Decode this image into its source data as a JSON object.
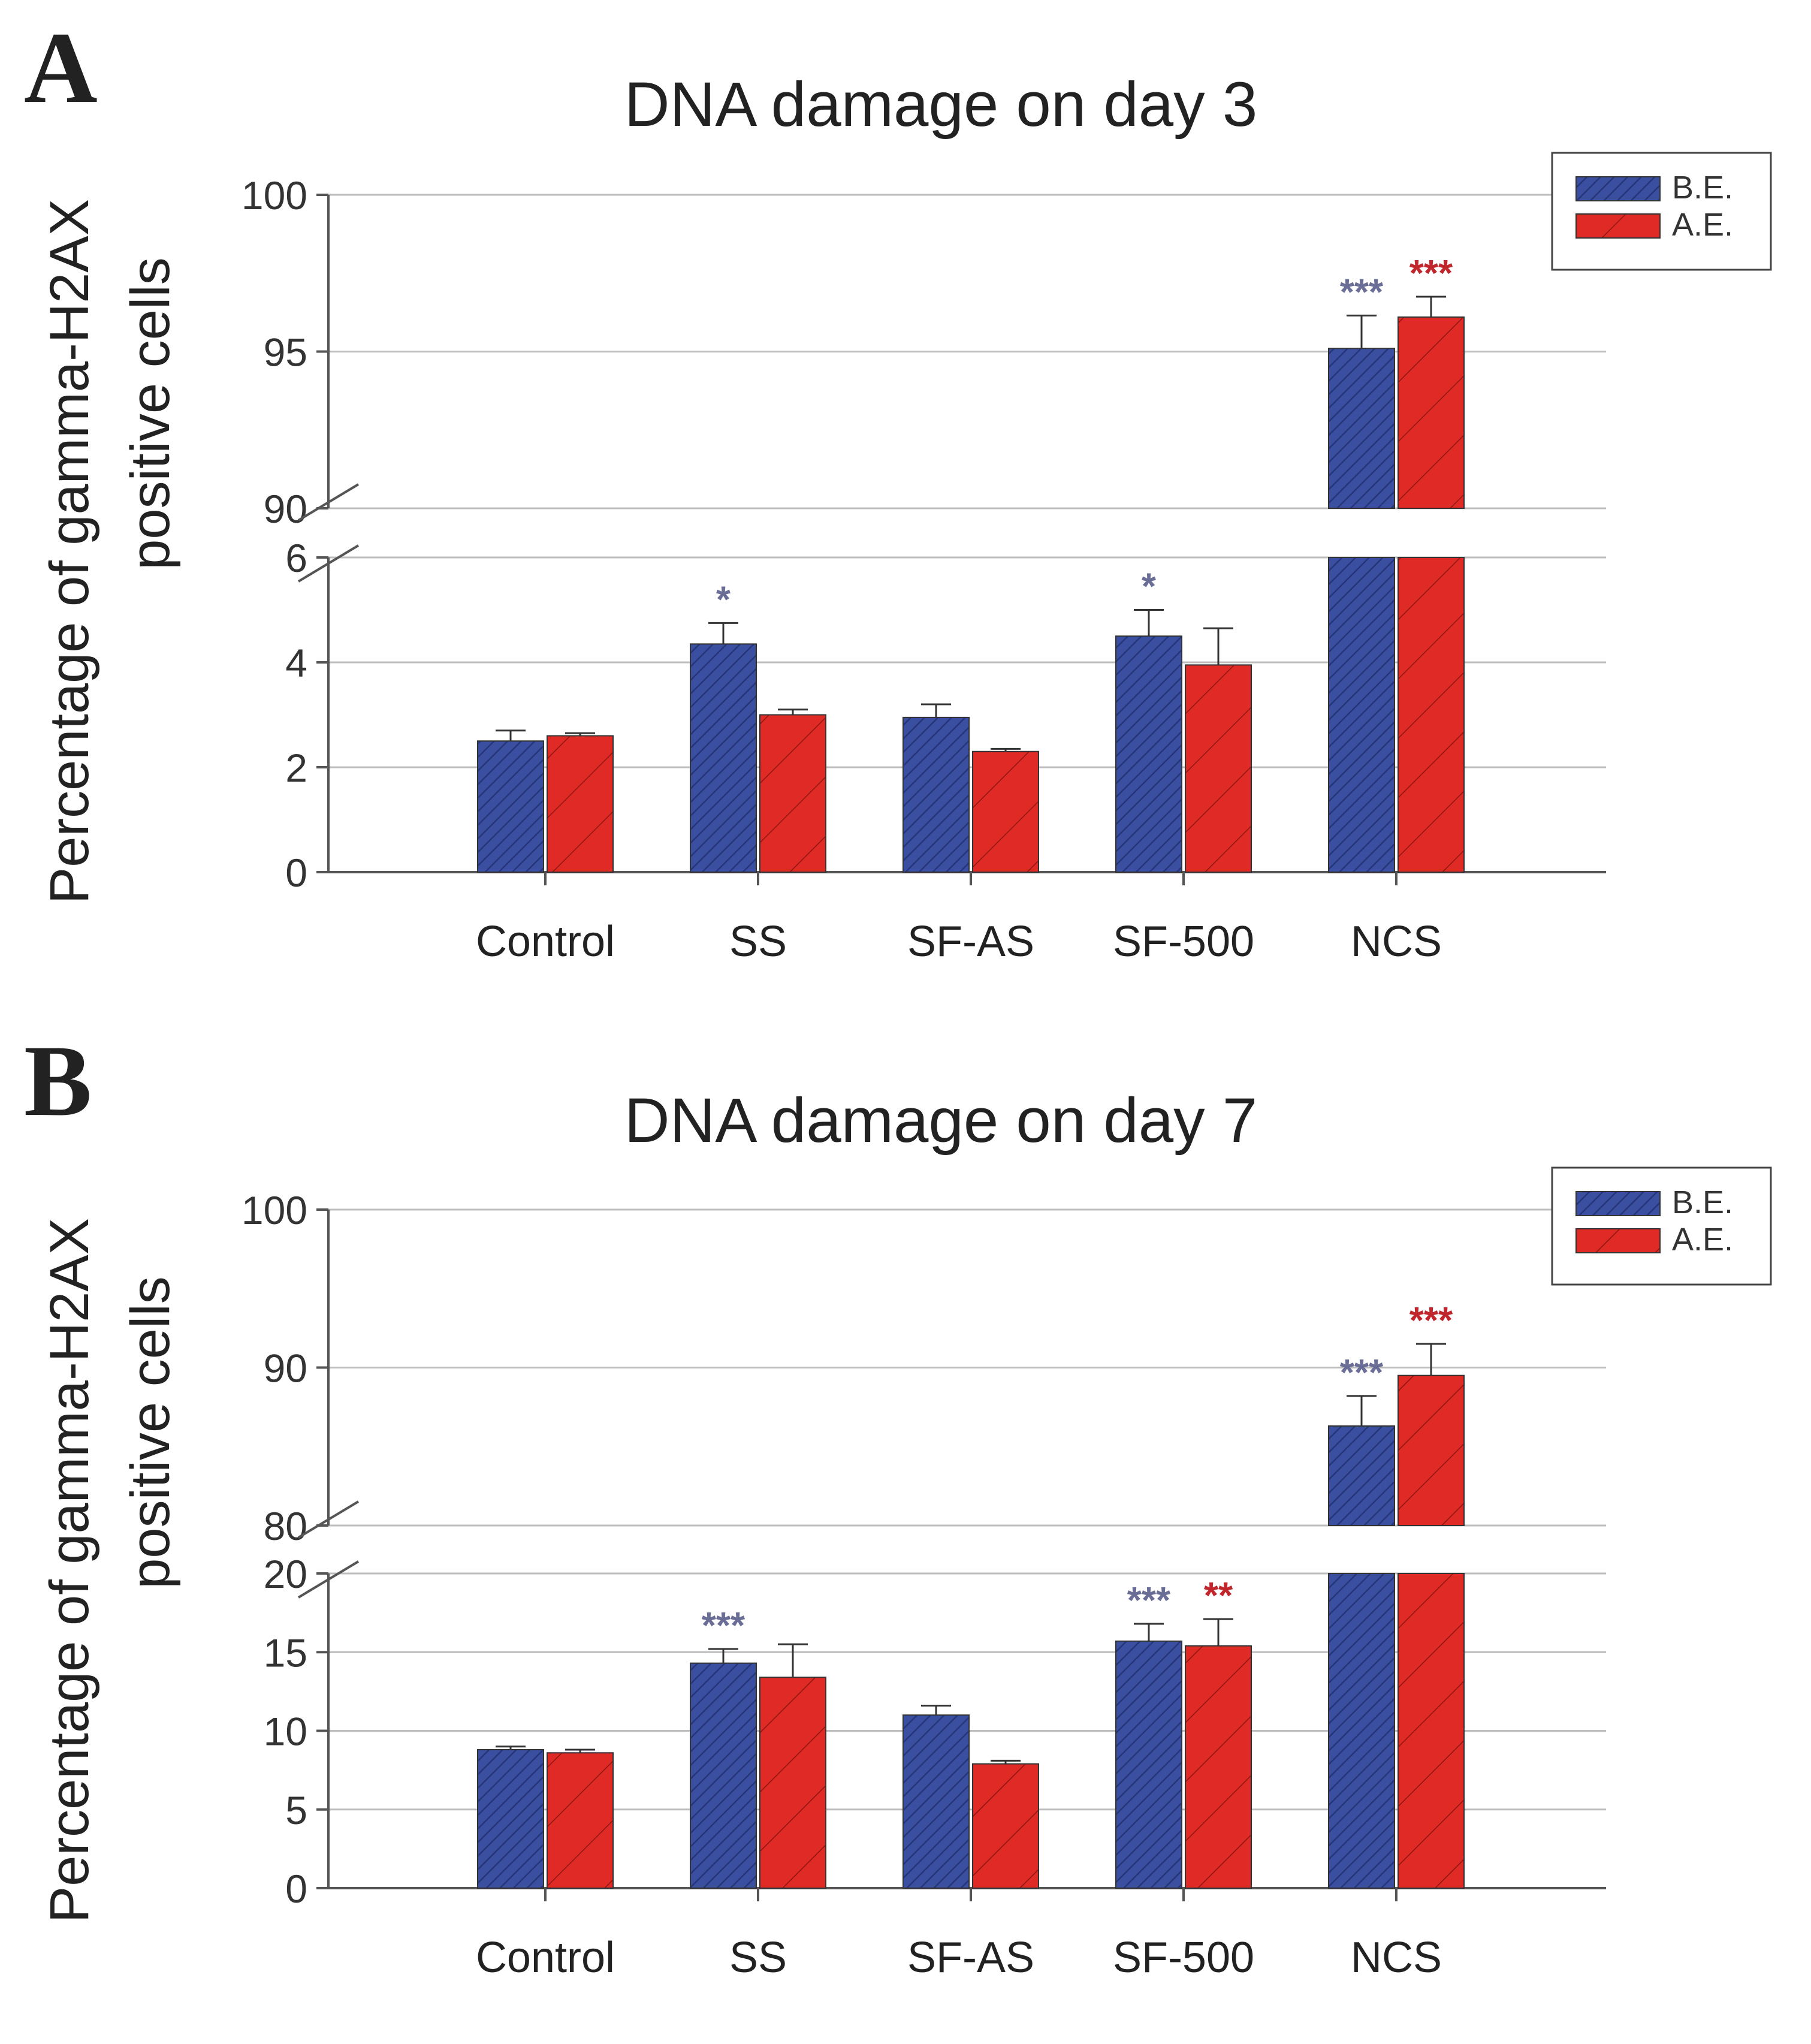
{
  "chart_data": [
    {
      "type": "bar",
      "panel_label": "A",
      "title": "DNA damage on day 3",
      "ylabel_line1": "Percentage of gamma-H2AX",
      "ylabel_line2": "positive cells",
      "xlabel": "",
      "categories": [
        "Control",
        "SS",
        "SF-AS",
        "SF-500",
        "NCS"
      ],
      "series": [
        {
          "name": "B.E.",
          "color": "#3b4fa0",
          "values": [
            2.5,
            4.35,
            2.95,
            4.5,
            95.1
          ],
          "errors": [
            0.2,
            0.4,
            0.25,
            0.5,
            1.05
          ],
          "significance": [
            "",
            "*",
            "",
            "*",
            "***"
          ]
        },
        {
          "name": "A.E.",
          "color": "#e02a25",
          "values": [
            2.6,
            3.0,
            2.3,
            3.95,
            96.1
          ],
          "errors": [
            0.05,
            0.1,
            0.05,
            0.7,
            0.65
          ],
          "significance": [
            "",
            "",
            "",
            "",
            "***"
          ]
        }
      ],
      "axis_break": {
        "lower": [
          0,
          6
        ],
        "upper": [
          90,
          100
        ]
      },
      "lower_ticks": [
        0,
        2,
        4,
        6
      ],
      "upper_ticks": [
        90,
        95,
        100
      ],
      "legend": "top-right",
      "grid": true
    },
    {
      "type": "bar",
      "panel_label": "B",
      "title": "DNA damage on day 7",
      "ylabel_line1": "Percentage of gamma-H2AX",
      "ylabel_line2": "positive cells",
      "xlabel": "",
      "categories": [
        "Control",
        "SS",
        "SF-AS",
        "SF-500",
        "NCS"
      ],
      "series": [
        {
          "name": "B.E.",
          "color": "#3b4fa0",
          "values": [
            8.8,
            14.3,
            11.0,
            15.7,
            86.3
          ],
          "errors": [
            0.2,
            0.9,
            0.6,
            1.1,
            1.9
          ],
          "significance": [
            "",
            "***",
            "",
            "***",
            "***"
          ]
        },
        {
          "name": "A.E.",
          "color": "#e02a25",
          "values": [
            8.6,
            13.4,
            7.9,
            15.4,
            89.5
          ],
          "errors": [
            0.2,
            2.1,
            0.2,
            1.7,
            2.0
          ],
          "significance": [
            "",
            "",
            "",
            "**",
            "***"
          ]
        }
      ],
      "axis_break": {
        "lower": [
          0,
          20
        ],
        "upper": [
          80,
          100
        ]
      },
      "lower_ticks": [
        0,
        5,
        10,
        15,
        20
      ],
      "upper_ticks": [
        80,
        90,
        100
      ],
      "legend": "top-right",
      "grid": true
    }
  ],
  "colors": {
    "be_sig": "#6a6e96",
    "ae_sig": "#c0262b",
    "grid": "#bdbdbd",
    "axis": "#555555"
  }
}
